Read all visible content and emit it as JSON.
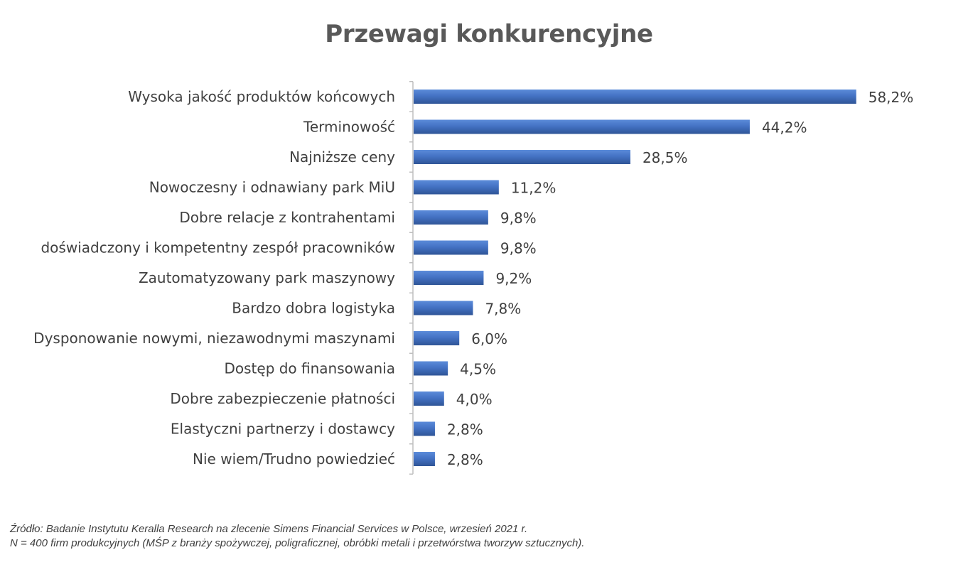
{
  "chart_data": {
    "type": "bar",
    "orientation": "horizontal",
    "title": "Przewagi konkurencyjne",
    "categories": [
      "Wysoka jakość produktów końcowych",
      "Terminowość",
      "Najniższe ceny",
      "Nowoczesny i odnawiany park MiU",
      "Dobre relacje z kontrahentami",
      "doświadczony i kompetentny zespół pracowników",
      "Zautomatyzowany park maszynowy",
      "Bardzo dobra logistyka",
      "Dysponowanie nowymi, niezawodnymi maszynami",
      "Dostęp do finansowania",
      "Dobre zabezpieczenie płatności",
      "Elastyczni partnerzy i dostawcy",
      "Nie wiem/Trudno powiedzieć"
    ],
    "values": [
      58.2,
      44.2,
      28.5,
      11.2,
      9.8,
      9.8,
      9.2,
      7.8,
      6.0,
      4.5,
      4.0,
      2.8,
      2.8
    ],
    "value_labels": [
      "58,2%",
      "44,2%",
      "28,5%",
      "11,2%",
      "9,8%",
      "9,8%",
      "9,2%",
      "7,8%",
      "6,0%",
      "4,5%",
      "4,0%",
      "2,8%",
      "2,8%"
    ],
    "unit": "%",
    "xlabel": "",
    "ylabel": "",
    "xlim": [
      0,
      60
    ],
    "grid": false,
    "legend": "none",
    "bar_color": "#4472C4"
  },
  "source": {
    "line1": "Źródło: Badanie Instytutu Keralla Research na zlecenie Simens Financial Services w Polsce, wrzesień 2021 r.",
    "line2": "N = 400 firm produkcyjnych (MŚP z branży spożywczej, poligraficznej, obróbki metali i przetwórstwa tworzyw sztucznych)."
  }
}
